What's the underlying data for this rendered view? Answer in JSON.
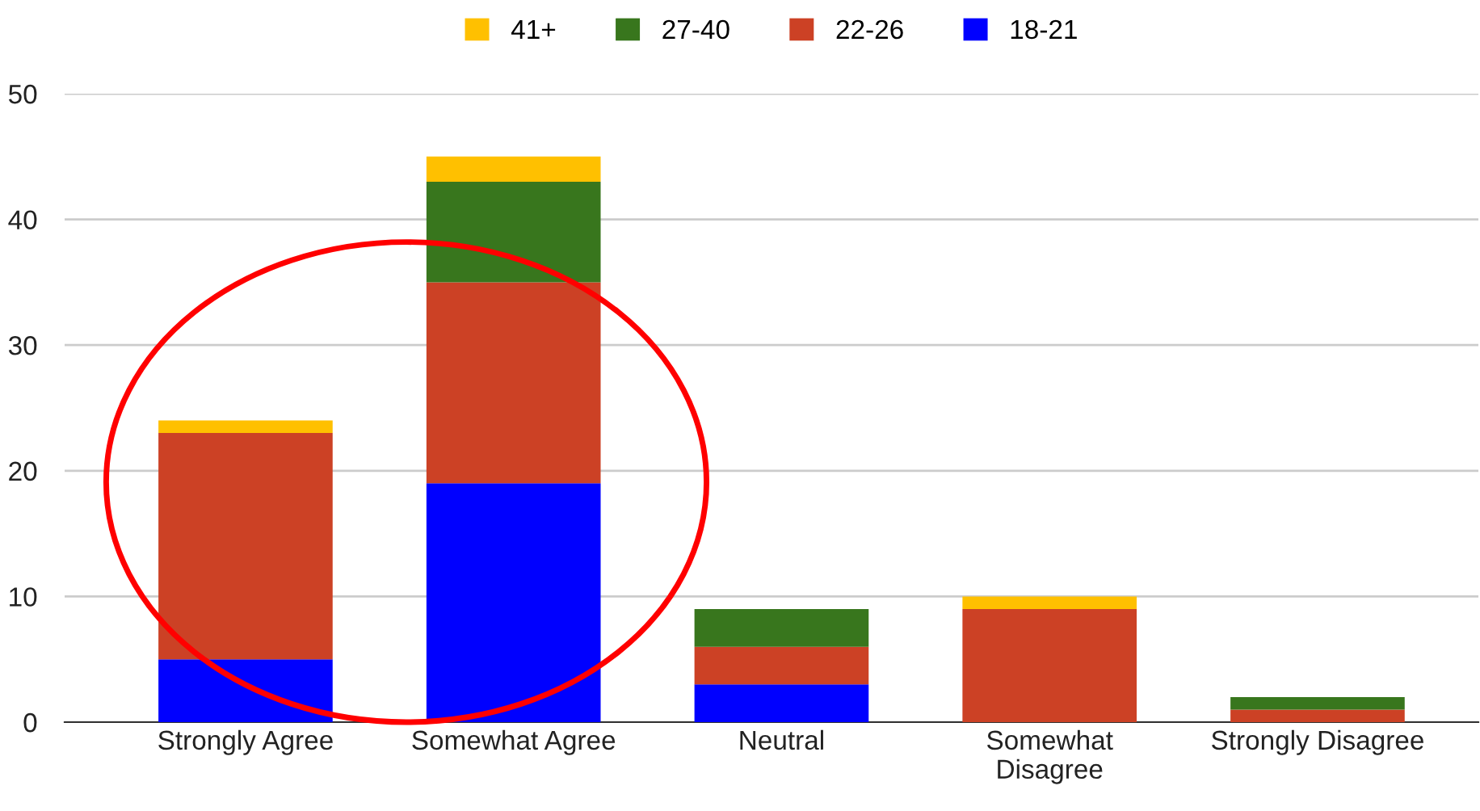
{
  "chart_data": {
    "type": "bar",
    "stacked": true,
    "categories": [
      "Strongly Agree",
      "Somewhat Agree",
      "Neutral",
      "Somewhat\nDisagree",
      "Strongly Disagree"
    ],
    "series": [
      {
        "name": "18-21",
        "color": "#0000ff",
        "values": [
          5,
          19,
          3,
          0,
          0
        ]
      },
      {
        "name": "22-26",
        "color": "#cc4125",
        "values": [
          18,
          16,
          3,
          9,
          1
        ]
      },
      {
        "name": "27-40",
        "color": "#38761d",
        "values": [
          0,
          8,
          3,
          0,
          1
        ]
      },
      {
        "name": "41+",
        "color": "#ffc000",
        "values": [
          1,
          2,
          0,
          1,
          0
        ]
      }
    ],
    "ylim": [
      0,
      50
    ],
    "yticks": [
      0,
      10,
      20,
      30,
      40,
      50
    ],
    "grid": "y",
    "legend": "top"
  }
}
